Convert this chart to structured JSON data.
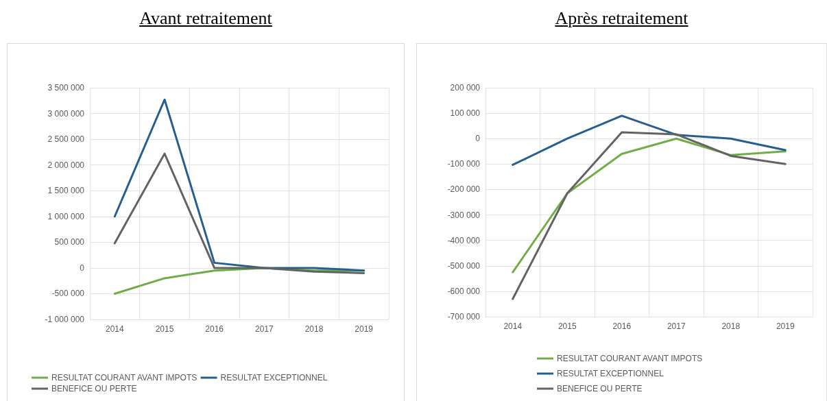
{
  "chart_data": [
    {
      "type": "line",
      "title": "Avant retraitement",
      "categories": [
        "2014",
        "2015",
        "2016",
        "2017",
        "2018",
        "2019"
      ],
      "series": [
        {
          "name": "RESULTAT COURANT AVANT IMPOTS",
          "color": "#70ad47",
          "values": [
            -500000,
            -200000,
            -50000,
            0,
            -50000,
            -50000
          ]
        },
        {
          "name": "RESULTAT EXCEPTIONNEL",
          "color": "#255e91",
          "values": [
            1000000,
            3270000,
            100000,
            0,
            0,
            -50000
          ]
        },
        {
          "name": "BENEFICE OU PERTE",
          "color": "#636363",
          "values": [
            480000,
            2220000,
            0,
            0,
            -70000,
            -100000
          ]
        }
      ],
      "ylim": [
        -1000000,
        3500000
      ],
      "yticks": [
        {
          "value": -1000000,
          "label": "-1 000 000"
        },
        {
          "value": -500000,
          "label": "-500 000"
        },
        0,
        {
          "value": 500000,
          "label": "500 000"
        },
        {
          "value": 1000000,
          "label": "1 000 000"
        },
        {
          "value": 1500000,
          "label": "1 500 000"
        },
        {
          "value": 2000000,
          "label": "2 000 000"
        },
        {
          "value": 2500000,
          "label": "2 500 000"
        },
        {
          "value": 3000000,
          "label": "3 000 000"
        },
        {
          "value": 3500000,
          "label": "3 500 000"
        }
      ],
      "grid": true,
      "legend": "bottom",
      "marker": "none",
      "line_style": "solid"
    },
    {
      "type": "line",
      "title": "Après retraitement",
      "categories": [
        "2014",
        "2015",
        "2016",
        "2017",
        "2018",
        "2019"
      ],
      "series": [
        {
          "name": "RESULTAT COURANT AVANT IMPOTS",
          "color": "#70ad47",
          "values": [
            -525000,
            -215000,
            -60000,
            0,
            -65000,
            -50000
          ]
        },
        {
          "name": "RESULTAT EXCEPTIONNEL",
          "color": "#255e91",
          "values": [
            -103000,
            0,
            90000,
            15000,
            0,
            -45000
          ]
        },
        {
          "name": "BENEFICE OU PERTE",
          "color": "#636363",
          "values": [
            -630000,
            -215000,
            25000,
            17000,
            -68000,
            -100000
          ]
        }
      ],
      "ylim": [
        -700000,
        200000
      ],
      "yticks": [
        {
          "value": -700000,
          "label": "-700 000"
        },
        {
          "value": -600000,
          "label": "-600 000"
        },
        {
          "value": -500000,
          "label": "-500 000"
        },
        {
          "value": -400000,
          "label": "-400 000"
        },
        {
          "value": -300000,
          "label": "-300 000"
        },
        {
          "value": -200000,
          "label": "-200 000"
        },
        {
          "value": -100000,
          "label": "-100 000"
        },
        0,
        {
          "value": 100000,
          "label": "100 000"
        },
        {
          "value": 200000,
          "label": "200 000"
        }
      ],
      "grid": true,
      "legend": "bottom",
      "marker": "none",
      "line_style": "solid"
    }
  ]
}
